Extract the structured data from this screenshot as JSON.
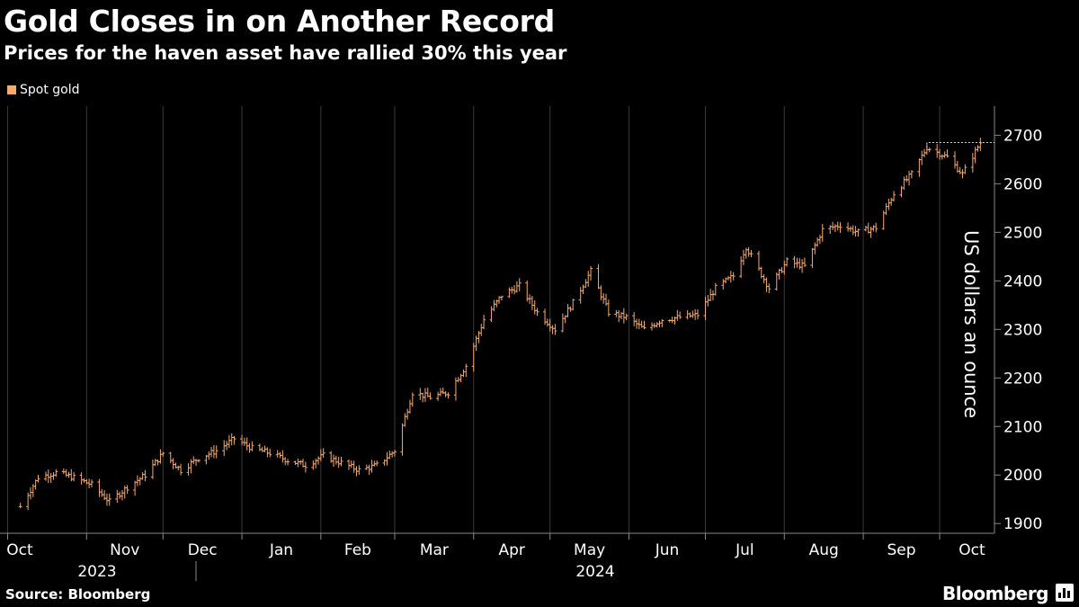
{
  "title": "Gold Closes in on Another Record",
  "subtitle": "Prices for the haven asset have rallied 30% this year",
  "source": "Source: Bloomberg",
  "brand": "Bloomberg",
  "colors": {
    "series": "#f8aa6b",
    "background": "#000000",
    "grid": "#3a3a3a"
  },
  "chart_data": {
    "type": "line",
    "title": "Gold Closes in on Another Record",
    "subtitle": "Prices for the haven asset have rallied 30% this year",
    "ylabel": "US dollars an ounce",
    "xlabel": "",
    "ylim": [
      1880,
      2760
    ],
    "yticks": [
      1900,
      2000,
      2100,
      2200,
      2300,
      2400,
      2500,
      2600,
      2700
    ],
    "y_axis_side": "right",
    "grid": "vertical lines at month boundaries",
    "legend": "top-left",
    "months": [
      "Oct",
      "Nov",
      "Dec",
      "Jan",
      "Feb",
      "Mar",
      "Apr",
      "May",
      "Jun",
      "Jul",
      "Aug",
      "Sep",
      "Oct"
    ],
    "years": [
      "2023",
      "2024"
    ],
    "record_line": 2685,
    "series": [
      {
        "name": "Spot gold",
        "points": [
          [
            "2023-10-06",
            1935
          ],
          [
            "2023-10-13",
            1995
          ],
          [
            "2023-10-20",
            2005
          ],
          [
            "2023-10-27",
            1995
          ],
          [
            "2023-11-03",
            1980
          ],
          [
            "2023-11-10",
            1945
          ],
          [
            "2023-11-17",
            1975
          ],
          [
            "2023-11-24",
            2000
          ],
          [
            "2023-12-01",
            2045
          ],
          [
            "2023-12-04",
            2030
          ],
          [
            "2023-12-08",
            2010
          ],
          [
            "2023-12-15",
            2035
          ],
          [
            "2023-12-22",
            2050
          ],
          [
            "2023-12-29",
            2075
          ],
          [
            "2024-01-05",
            2055
          ],
          [
            "2024-01-12",
            2045
          ],
          [
            "2024-01-19",
            2030
          ],
          [
            "2024-01-26",
            2020
          ],
          [
            "2024-02-02",
            2040
          ],
          [
            "2024-02-09",
            2025
          ],
          [
            "2024-02-16",
            2010
          ],
          [
            "2024-02-23",
            2020
          ],
          [
            "2024-03-01",
            2050
          ],
          [
            "2024-03-08",
            2170
          ],
          [
            "2024-03-15",
            2160
          ],
          [
            "2024-03-22",
            2170
          ],
          [
            "2024-03-29",
            2225
          ],
          [
            "2024-04-05",
            2320
          ],
          [
            "2024-04-12",
            2370
          ],
          [
            "2024-04-19",
            2390
          ],
          [
            "2024-04-26",
            2335
          ],
          [
            "2024-05-03",
            2300
          ],
          [
            "2024-05-10",
            2355
          ],
          [
            "2024-05-17",
            2420
          ],
          [
            "2024-05-24",
            2335
          ],
          [
            "2024-05-31",
            2325
          ],
          [
            "2024-06-07",
            2300
          ],
          [
            "2024-06-14",
            2320
          ],
          [
            "2024-06-21",
            2325
          ],
          [
            "2024-06-28",
            2330
          ],
          [
            "2024-07-05",
            2385
          ],
          [
            "2024-07-12",
            2410
          ],
          [
            "2024-07-17",
            2470
          ],
          [
            "2024-07-26",
            2385
          ],
          [
            "2024-08-02",
            2440
          ],
          [
            "2024-08-09",
            2430
          ],
          [
            "2024-08-16",
            2505
          ],
          [
            "2024-08-23",
            2515
          ],
          [
            "2024-08-30",
            2500
          ],
          [
            "2024-09-06",
            2510
          ],
          [
            "2024-09-13",
            2580
          ],
          [
            "2024-09-20",
            2620
          ],
          [
            "2024-09-26",
            2675
          ],
          [
            "2024-10-04",
            2655
          ],
          [
            "2024-10-10",
            2620
          ],
          [
            "2024-10-17",
            2685
          ]
        ]
      }
    ]
  }
}
